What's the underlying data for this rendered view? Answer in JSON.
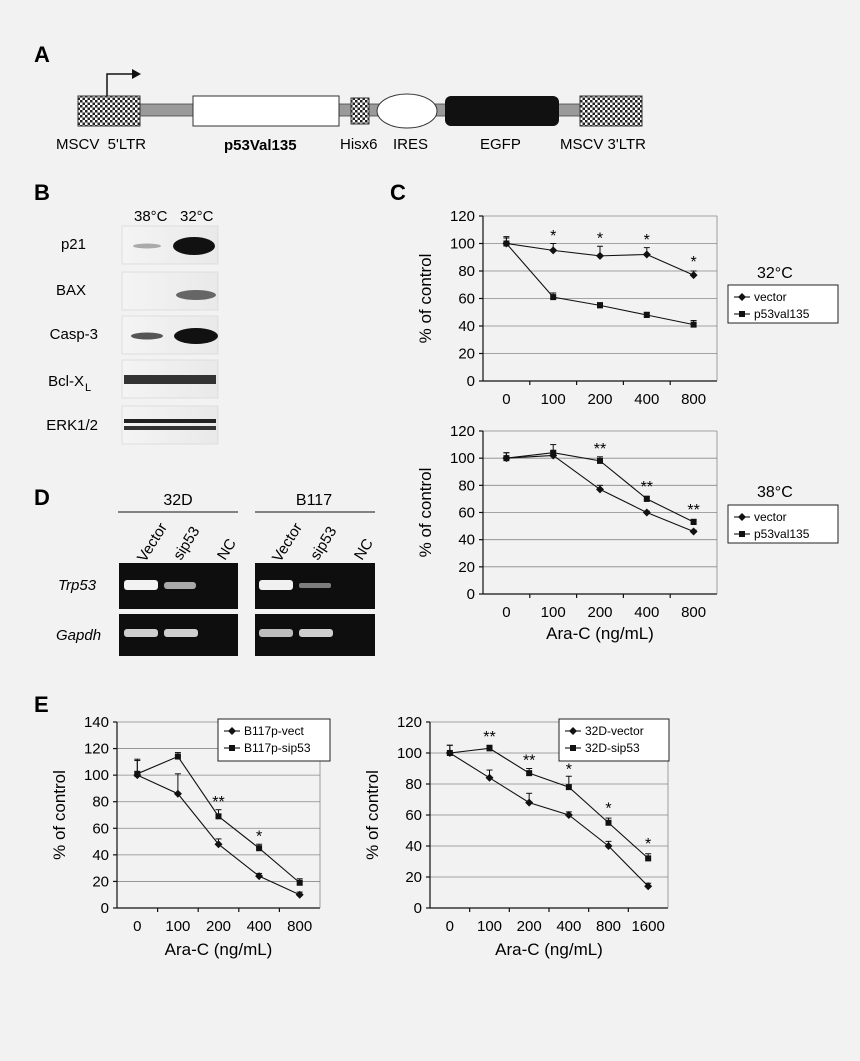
{
  "panel_labels": {
    "a": "A",
    "b": "B",
    "c": "C",
    "d": "D",
    "e": "E"
  },
  "construct": {
    "labels": [
      "MSCV  5'LTR",
      "p53Val135",
      "Hisx6",
      "IRES",
      "EGFP",
      "MSCV 3'LTR"
    ]
  },
  "western": {
    "temps": [
      "38°C",
      "32°C"
    ],
    "proteins": [
      "p21",
      "BAX",
      "Casp-3",
      "Bcl-X",
      "ERK1/2"
    ],
    "bcl_sub": "L"
  },
  "pcr": {
    "groups": [
      "32D",
      "B117"
    ],
    "lanes": [
      "Vector",
      "sip53",
      "NC"
    ],
    "genes": [
      "Trp53",
      "Gapdh"
    ]
  },
  "chart_data": [
    {
      "id": "C-32",
      "type": "line",
      "categories": [
        "0",
        "100",
        "200",
        "400",
        "800"
      ],
      "ylabel": "% of control",
      "xlabel": "",
      "ylim": [
        0,
        120
      ],
      "yticks": [
        0,
        20,
        40,
        60,
        80,
        100,
        120
      ],
      "legend_title": "32°C",
      "legend_pos": "right",
      "series": [
        {
          "name": "vector",
          "marker": "diamond",
          "values": [
            100,
            95,
            91,
            92,
            77
          ],
          "err": [
            5,
            5,
            7,
            5,
            3
          ]
        },
        {
          "name": "p53val135",
          "marker": "square",
          "values": [
            100,
            61,
            55,
            48,
            41
          ],
          "err": [
            4,
            3,
            2,
            2,
            3
          ]
        }
      ],
      "annotations": [
        {
          "cat": 1,
          "text": "*",
          "value": 102
        },
        {
          "cat": 2,
          "text": "*",
          "value": 100
        },
        {
          "cat": 3,
          "text": "*",
          "value": 99
        },
        {
          "cat": 4,
          "text": "*",
          "value": 83
        }
      ]
    },
    {
      "id": "C-38",
      "type": "line",
      "categories": [
        "0",
        "100",
        "200",
        "400",
        "800"
      ],
      "ylabel": "% of control",
      "xlabel": "Ara-C (ng/mL)",
      "ylim": [
        0,
        120
      ],
      "yticks": [
        0,
        20,
        40,
        60,
        80,
        100,
        120
      ],
      "legend_title": "38°C",
      "legend_pos": "right",
      "series": [
        {
          "name": "vector",
          "marker": "diamond",
          "values": [
            100,
            102,
            77,
            60,
            46
          ],
          "err": [
            4,
            3,
            3,
            1,
            1
          ]
        },
        {
          "name": "p53val135",
          "marker": "square",
          "values": [
            100,
            104,
            98,
            70,
            53
          ],
          "err": [
            4,
            6,
            3,
            2,
            2
          ]
        }
      ],
      "annotations": [
        {
          "cat": 2,
          "text": "**",
          "value": 103
        },
        {
          "cat": 3,
          "text": "**",
          "value": 75
        },
        {
          "cat": 4,
          "text": "**",
          "value": 58
        }
      ]
    },
    {
      "id": "E-B117",
      "type": "line",
      "categories": [
        "0",
        "100",
        "200",
        "400",
        "800"
      ],
      "ylabel": "% of control",
      "xlabel": "Ara-C (ng/mL)",
      "ylim": [
        0,
        140
      ],
      "yticks": [
        0,
        20,
        40,
        60,
        80,
        100,
        120,
        140
      ],
      "legend_pos": "top-right",
      "series": [
        {
          "name": "B117p-vect",
          "marker": "diamond",
          "values": [
            100,
            86,
            48,
            24,
            10
          ],
          "err": [
            12,
            15,
            4,
            2,
            2
          ]
        },
        {
          "name": "B117p-sip53",
          "marker": "square",
          "values": [
            101,
            114,
            69,
            45,
            19
          ],
          "err": [
            10,
            3,
            5,
            3,
            3
          ]
        }
      ],
      "annotations": [
        {
          "cat": 2,
          "text": "**",
          "value": 76
        },
        {
          "cat": 3,
          "text": "*",
          "value": 50
        }
      ]
    },
    {
      "id": "E-32D",
      "type": "line",
      "categories": [
        "0",
        "100",
        "200",
        "400",
        "800",
        "1600"
      ],
      "ylabel": "% of control",
      "xlabel": "Ara-C (ng/mL)",
      "ylim": [
        0,
        120
      ],
      "yticks": [
        0,
        20,
        40,
        60,
        80,
        100,
        120
      ],
      "legend_pos": "top-right",
      "series": [
        {
          "name": "32D-vector",
          "marker": "diamond",
          "values": [
            100,
            84,
            68,
            60,
            40,
            14
          ],
          "err": [
            5,
            5,
            6,
            2,
            3,
            2
          ]
        },
        {
          "name": "32D-sip53",
          "marker": "square",
          "values": [
            100,
            103,
            87,
            78,
            55,
            32
          ],
          "err": [
            5,
            2,
            3,
            7,
            3,
            3
          ]
        }
      ],
      "annotations": [
        {
          "cat": 1,
          "text": "**",
          "value": 107
        },
        {
          "cat": 2,
          "text": "**",
          "value": 92
        },
        {
          "cat": 3,
          "text": "*",
          "value": 86
        },
        {
          "cat": 4,
          "text": "*",
          "value": 61
        },
        {
          "cat": 5,
          "text": "*",
          "value": 38
        }
      ]
    }
  ]
}
